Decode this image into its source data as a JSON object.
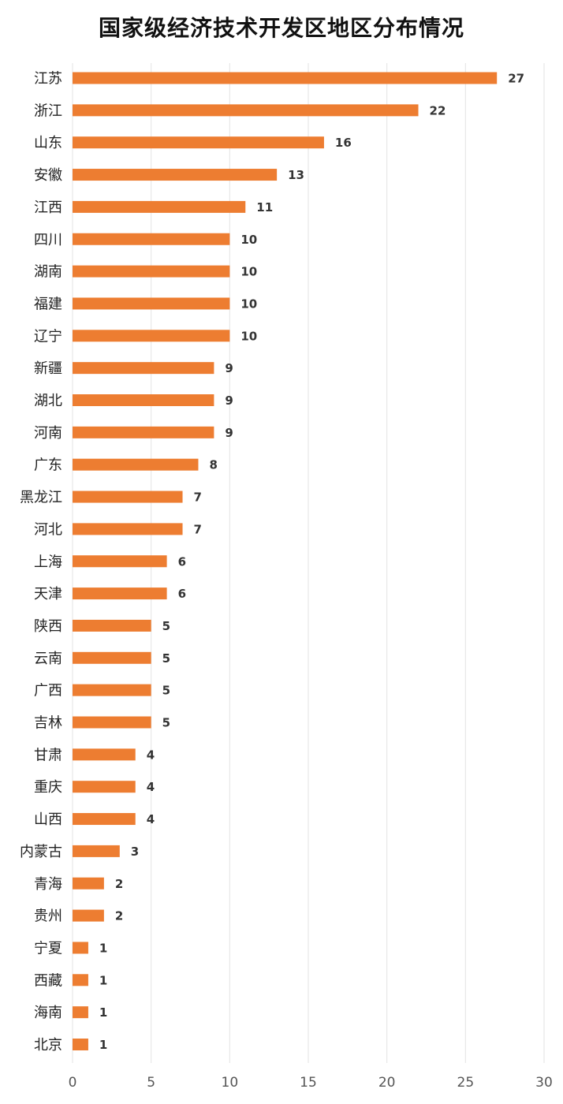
{
  "chart_data": {
    "type": "bar",
    "orientation": "horizontal",
    "title": "国家级经济技术开发区地区分布情况",
    "xlabel": "",
    "ylabel": "",
    "xlim": [
      0,
      30
    ],
    "xticks": [
      0,
      5,
      10,
      15,
      20,
      25,
      30
    ],
    "grid": "vertical",
    "legend": "none",
    "bar_color": "#ED7D31",
    "categories": [
      "江苏",
      "浙江",
      "山东",
      "安徽",
      "江西",
      "四川",
      "湖南",
      "福建",
      "辽宁",
      "新疆",
      "湖北",
      "河南",
      "广东",
      "黑龙江",
      "河北",
      "上海",
      "天津",
      "陕西",
      "云南",
      "广西",
      "吉林",
      "甘肃",
      "重庆",
      "山西",
      "内蒙古",
      "青海",
      "贵州",
      "宁夏",
      "西藏",
      "海南",
      "北京"
    ],
    "values": [
      27,
      22,
      16,
      13,
      11,
      10,
      10,
      10,
      10,
      9,
      9,
      9,
      8,
      7,
      7,
      6,
      6,
      5,
      5,
      5,
      5,
      4,
      4,
      4,
      3,
      2,
      2,
      1,
      1,
      1,
      1
    ]
  }
}
